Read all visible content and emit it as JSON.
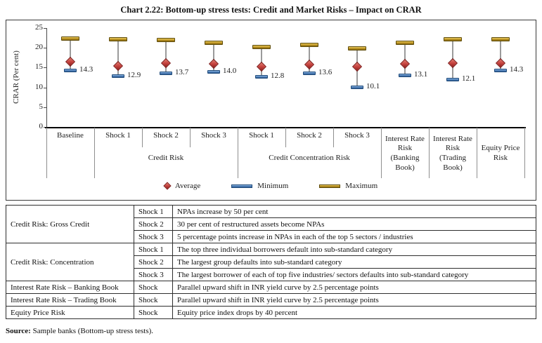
{
  "title": "Chart 2.22: Bottom-up stress tests: Credit and Market Risks – Impact on CRAR",
  "chart_data": {
    "type": "scatter",
    "subtype": "high-low-range",
    "title": "Chart 2.22: Bottom-up stress tests: Credit and Market Risks – Impact on CRAR",
    "ylabel": "CRAR (Per cent)",
    "xlabel": "",
    "ylim": [
      0,
      25
    ],
    "yticks": [
      0,
      5,
      10,
      15,
      20,
      25
    ],
    "grid": false,
    "legend_position": "bottom",
    "categories": [
      "Baseline",
      "Shock 1",
      "Shock 2",
      "Shock 3",
      "Shock 1",
      "Shock 2",
      "Shock 3",
      "Interest Rate Risk (Banking Book)",
      "Interest Rate Risk (Trading Book)",
      "Equity Price Risk"
    ],
    "series": [
      {
        "name": "Average",
        "marker": "red-diamond",
        "color": "#c74440",
        "values": [
          16.5,
          15.4,
          16.2,
          16.0,
          15.2,
          15.8,
          15.2,
          16.0,
          16.2,
          16.2
        ]
      },
      {
        "name": "Minimum",
        "marker": "blue-bar",
        "color": "#4f81bd",
        "values": [
          14.3,
          12.9,
          13.7,
          14.0,
          12.8,
          13.6,
          10.1,
          13.1,
          12.1,
          14.3
        ]
      },
      {
        "name": "Maximum",
        "marker": "gold-bar",
        "color": "#c49a26",
        "values": [
          22.3,
          22.2,
          21.9,
          21.3,
          20.3,
          20.8,
          19.9,
          21.3,
          22.2,
          22.1
        ]
      }
    ],
    "data_labels": [
      "14.3",
      "12.9",
      "13.7",
      "14.0",
      "12.8",
      "13.6",
      "10.1",
      "13.1",
      "12.1",
      "14.3"
    ]
  },
  "axis": {
    "shock_labels": [
      "Baseline",
      "Shock 1",
      "Shock 2",
      "Shock 3",
      "Shock 1",
      "Shock 2",
      "Shock 3"
    ],
    "group_labels": [
      "Credit Risk",
      "Credit Concentration Risk"
    ],
    "tall_labels": [
      "Interest Rate Risk (Banking Book)",
      "Interest Rate Risk (Trading Book)",
      "Equity Price Risk"
    ]
  },
  "legend": {
    "average": "Average",
    "minimum": "Minimum",
    "maximum": "Maximum"
  },
  "table": {
    "rows": [
      {
        "risk": "Credit Risk: Gross Credit",
        "rowspan": 3,
        "shock": "Shock 1",
        "desc": "NPAs increase by 50 per cent"
      },
      {
        "shock": "Shock 2",
        "desc": "30 per cent of restructured assets become NPAs"
      },
      {
        "shock": "Shock 3",
        "desc": "5 percentage points increase in NPAs in each of the top 5 sectors / industries"
      },
      {
        "risk": "Credit Risk: Concentration",
        "rowspan": 3,
        "shock": "Shock 1",
        "desc": "The top three individual borrowers default into sub-standard category"
      },
      {
        "shock": "Shock 2",
        "desc": "The largest group defaults into sub-standard category"
      },
      {
        "shock": "Shock 3",
        "desc": "The largest borrower of each of top five industries/ sectors defaults into sub-standard category"
      },
      {
        "risk": "Interest Rate Risk – Banking Book",
        "rowspan": 1,
        "shock": "Shock",
        "desc": "Parallel upward shift in INR yield curve by 2.5 percentage points"
      },
      {
        "risk": "Interest Rate Risk – Trading Book",
        "rowspan": 1,
        "shock": "Shock",
        "desc": "Parallel upward shift in INR yield curve by 2.5 percentage points"
      },
      {
        "risk": "Equity Price Risk",
        "rowspan": 1,
        "shock": "Shock",
        "desc": "Equity price index drops by 40 percent"
      }
    ]
  },
  "source": {
    "label": "Source:",
    "text": " Sample banks (Bottom-up stress tests)."
  }
}
